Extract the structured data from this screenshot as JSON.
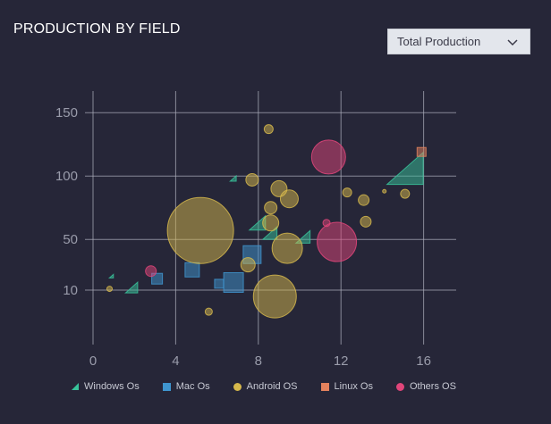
{
  "header": {
    "title": "PRODUCTION BY FIELD"
  },
  "dropdown": {
    "selected": "Total Production",
    "icon": "chevron-down-icon"
  },
  "colors": {
    "background": "#262638",
    "grid": "#a9abb8",
    "tick": "#9a9cab",
    "windows": "#38c29a",
    "mac": "#3f95cf",
    "android": "#d6b84c",
    "linux": "#e3825d",
    "others": "#e0457a"
  },
  "chart_data": {
    "type": "scatter",
    "title": "PRODUCTION BY FIELD",
    "xlabel": "",
    "ylabel": "",
    "xlim": [
      0,
      16.5
    ],
    "ylim": [
      -20,
      160
    ],
    "x_ticks": [
      0,
      4,
      8,
      12,
      16
    ],
    "y_ticks": [
      10,
      50,
      100,
      150
    ],
    "grid": true,
    "legend_position": "bottom",
    "legend": [
      {
        "name": "Windows Os",
        "shape": "triangle",
        "color": "#38c29a"
      },
      {
        "name": "Mac Os",
        "shape": "square",
        "color": "#3f95cf"
      },
      {
        "name": "Android OS",
        "shape": "circle",
        "color": "#d6b84c"
      },
      {
        "name": "Linux Os",
        "shape": "square",
        "color": "#e3825d"
      },
      {
        "name": "Others OS",
        "shape": "circle",
        "color": "#e0457a"
      }
    ],
    "series": [
      {
        "name": "Windows Os",
        "shape": "triangle",
        "color": "#38c29a",
        "points": [
          {
            "x": 0.9,
            "y": 21,
            "size": 2
          },
          {
            "x": 1.9,
            "y": 12,
            "size": 6
          },
          {
            "x": 6.8,
            "y": 98,
            "size": 3
          },
          {
            "x": 8.0,
            "y": 63,
            "size": 8
          },
          {
            "x": 8.6,
            "y": 55,
            "size": 7
          },
          {
            "x": 10.2,
            "y": 52,
            "size": 7
          },
          {
            "x": 15.2,
            "y": 106,
            "size": 18
          }
        ]
      },
      {
        "name": "Mac Os",
        "shape": "square",
        "color": "#3f95cf",
        "points": [
          {
            "x": 3.1,
            "y": 19,
            "size": 6
          },
          {
            "x": 4.8,
            "y": 26,
            "size": 8
          },
          {
            "x": 6.1,
            "y": 15,
            "size": 5
          },
          {
            "x": 6.8,
            "y": 16,
            "size": 11
          },
          {
            "x": 7.7,
            "y": 38,
            "size": 10
          }
        ]
      },
      {
        "name": "Android OS",
        "shape": "circle",
        "color": "#d6b84c",
        "points": [
          {
            "x": 0.8,
            "y": 11,
            "size": 3
          },
          {
            "x": 5.2,
            "y": 57,
            "size": 37
          },
          {
            "x": 5.6,
            "y": -7,
            "size": 4
          },
          {
            "x": 7.5,
            "y": 30,
            "size": 8
          },
          {
            "x": 7.7,
            "y": 97,
            "size": 7
          },
          {
            "x": 8.5,
            "y": 137,
            "size": 5
          },
          {
            "x": 8.6,
            "y": 63,
            "size": 9
          },
          {
            "x": 8.6,
            "y": 75,
            "size": 7
          },
          {
            "x": 8.8,
            "y": 5,
            "size": 24
          },
          {
            "x": 9.0,
            "y": 90,
            "size": 9
          },
          {
            "x": 9.5,
            "y": 82,
            "size": 10
          },
          {
            "x": 9.4,
            "y": 43,
            "size": 17
          },
          {
            "x": 12.3,
            "y": 87,
            "size": 5
          },
          {
            "x": 13.1,
            "y": 81,
            "size": 6
          },
          {
            "x": 13.2,
            "y": 64,
            "size": 6
          },
          {
            "x": 14.1,
            "y": 88,
            "size": 2
          },
          {
            "x": 15.1,
            "y": 86,
            "size": 5
          }
        ]
      },
      {
        "name": "Linux Os",
        "shape": "square",
        "color": "#e3825d",
        "points": [
          {
            "x": 15.9,
            "y": 119,
            "size": 5
          }
        ]
      },
      {
        "name": "Others OS",
        "shape": "circle",
        "color": "#e0457a",
        "points": [
          {
            "x": 2.8,
            "y": 25,
            "size": 6
          },
          {
            "x": 11.3,
            "y": 63,
            "size": 4
          },
          {
            "x": 11.4,
            "y": 115,
            "size": 19
          },
          {
            "x": 11.8,
            "y": 48,
            "size": 22
          }
        ]
      }
    ]
  }
}
